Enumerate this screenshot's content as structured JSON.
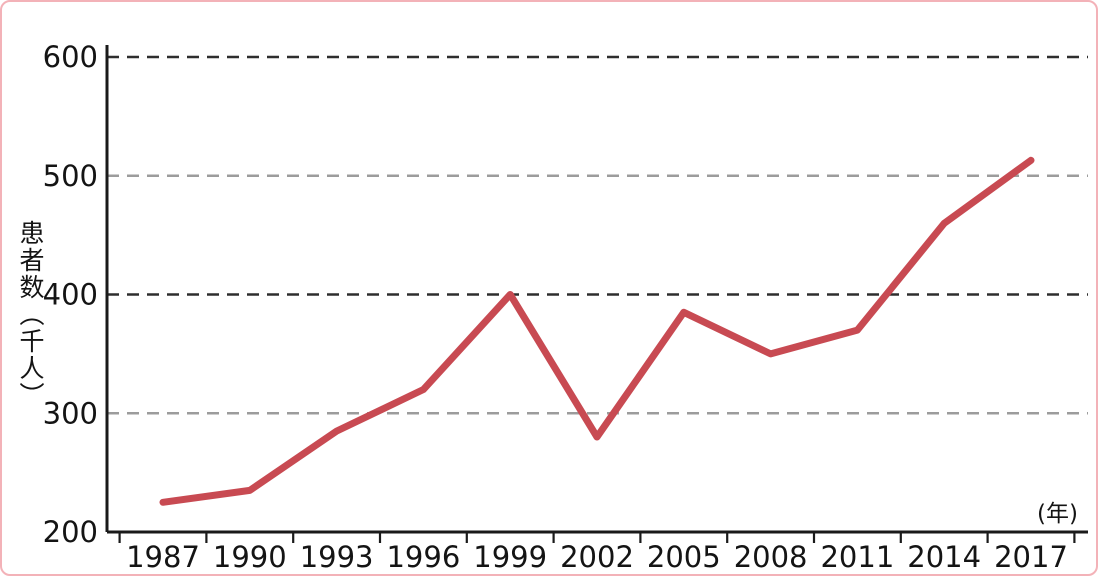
{
  "chart_data": {
    "type": "line",
    "title": "",
    "ylabel": "患者数（千人）",
    "x_unit_label": "(年)",
    "categories": [
      "1987",
      "1990",
      "1993",
      "1996",
      "1999",
      "2002",
      "2005",
      "2008",
      "2011",
      "2014",
      "2017"
    ],
    "values": [
      225,
      235,
      285,
      320,
      400,
      280,
      385,
      350,
      370,
      460,
      513
    ],
    "ylim": [
      200,
      600
    ],
    "yticks": [
      200,
      300,
      400,
      500,
      600
    ],
    "grid": "horizontal-dashed",
    "legend": "none"
  },
  "colors": {
    "line": "#c84a52",
    "axis": "#1a1a1a",
    "grid_dark": "#2e2e2e",
    "grid_light": "#9c9c9c",
    "border": "#f3b2b8",
    "text": "#141414"
  }
}
